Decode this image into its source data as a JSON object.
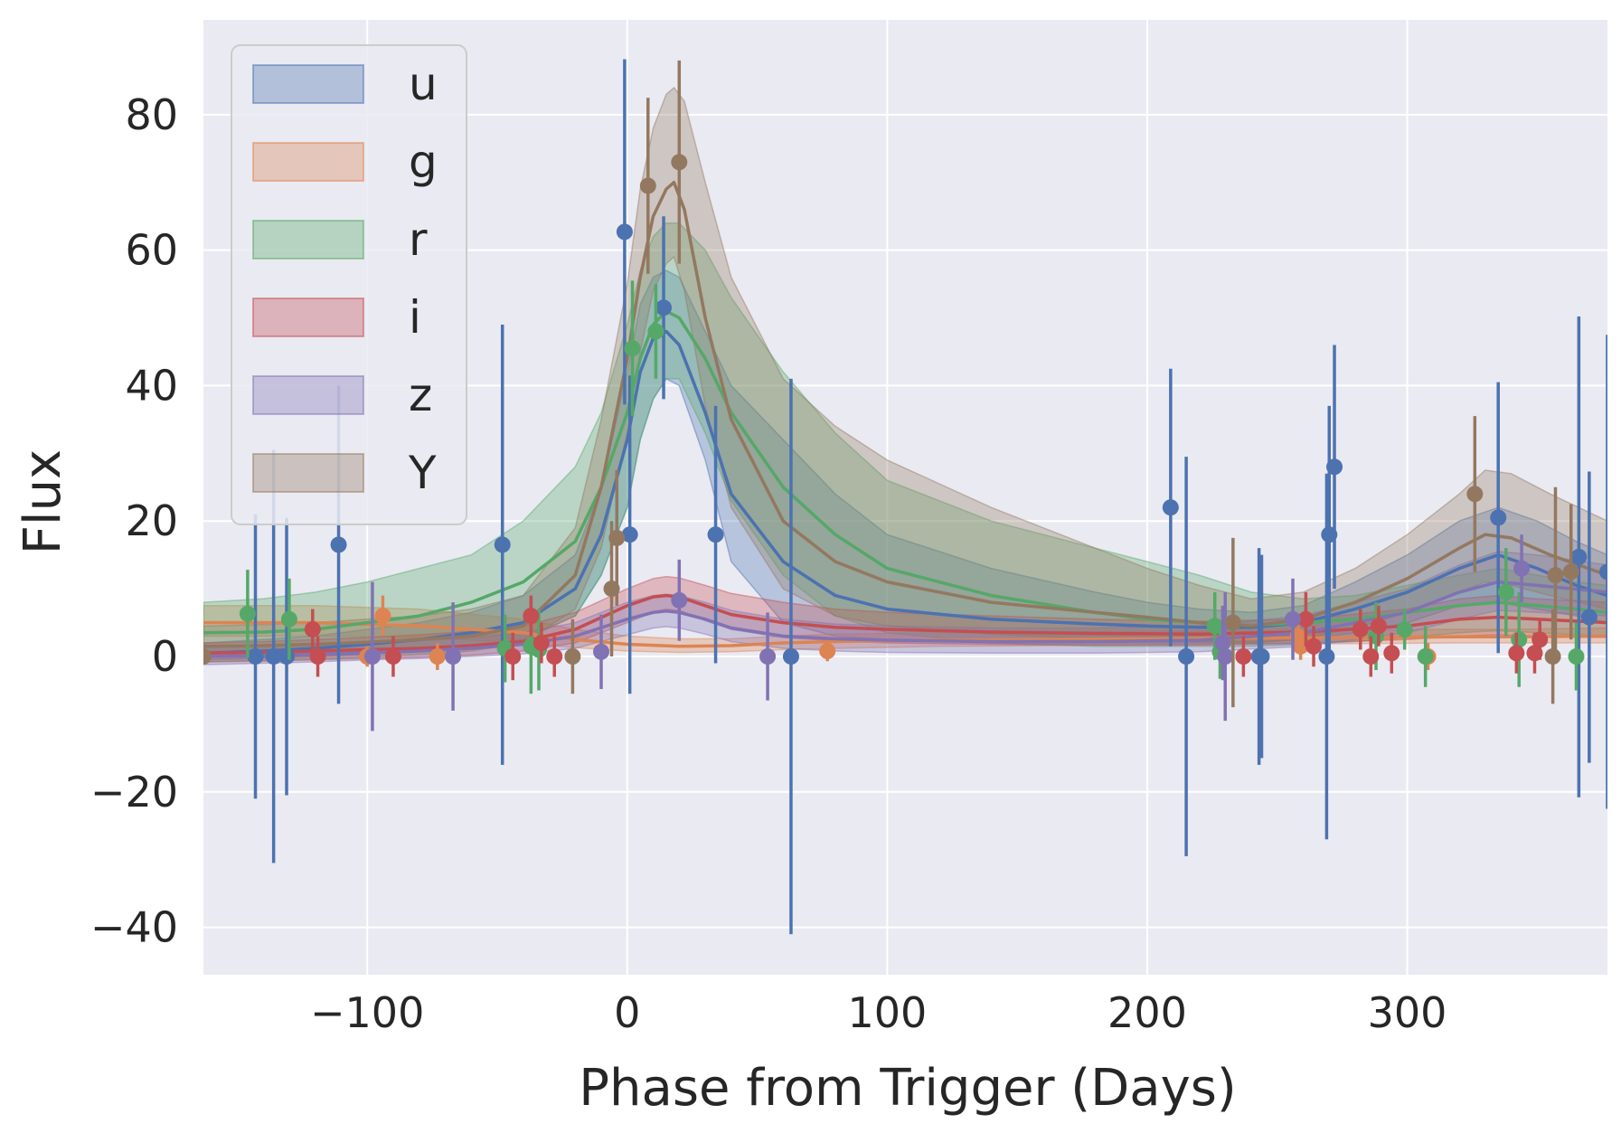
{
  "chart_data": {
    "type": "line",
    "title": "",
    "xlabel": "Phase from Trigger (Days)",
    "ylabel": "Flux",
    "xlim": [
      -163,
      377
    ],
    "ylim": [
      -47,
      94
    ],
    "xticks": [
      -100,
      0,
      100,
      200,
      300
    ],
    "xtick_labels": [
      "−100",
      "0",
      "100",
      "200",
      "300"
    ],
    "yticks": [
      -40,
      -20,
      0,
      20,
      40,
      60,
      80
    ],
    "ytick_labels": [
      "−40",
      "−20",
      "0",
      "20",
      "40",
      "60",
      "80"
    ],
    "grid": true,
    "legend_position": "top-left",
    "style": "seaborn-darkgrid",
    "series": [
      {
        "name": "u",
        "color": "#4c72b0",
        "model_x": [
          -163,
          -140,
          -120,
          -100,
          -80,
          -60,
          -40,
          -20,
          -10,
          0,
          5,
          10,
          15,
          20,
          30,
          40,
          60,
          80,
          100,
          140,
          180,
          200,
          220,
          240,
          260,
          280,
          300,
          320,
          335,
          350,
          365,
          377
        ],
        "model_y": [
          0.5,
          0.8,
          1.2,
          1.8,
          2.5,
          3.5,
          5,
          10,
          18,
          32,
          42,
          47,
          48,
          46,
          36,
          24,
          14,
          9,
          7,
          5.5,
          4.8,
          4.5,
          4.3,
          4.3,
          5,
          7,
          9.5,
          13,
          15,
          13,
          10.5,
          9
        ],
        "band_lo": [
          -0.5,
          -0.3,
          0,
          0.3,
          0.8,
          1.5,
          2.5,
          6,
          12,
          22,
          32,
          38,
          41,
          40,
          29,
          14,
          5,
          3,
          2.5,
          2,
          2,
          2,
          2,
          2,
          2.5,
          3.5,
          5,
          7.5,
          8,
          7,
          6,
          5
        ],
        "band_hi": [
          2,
          2.5,
          3,
          4,
          5,
          6.5,
          9,
          15,
          25,
          42,
          52,
          56,
          57,
          56,
          48,
          40,
          32,
          24,
          18,
          13,
          9.5,
          8,
          7,
          6.5,
          7.5,
          11,
          15,
          20,
          22,
          20,
          17,
          15
        ],
        "points": [
          {
            "x": -143,
            "y": 0,
            "err": 21
          },
          {
            "x": -136,
            "y": 0,
            "err": 30.5
          },
          {
            "x": -131,
            "y": 0,
            "err": 20.5
          },
          {
            "x": -111,
            "y": 16.5,
            "err": 23.5
          },
          {
            "x": -48,
            "y": 16.5,
            "err": 32.5
          },
          {
            "x": -1,
            "y": 62.7,
            "err": 25.5
          },
          {
            "x": 1,
            "y": 18,
            "err": 23.5
          },
          {
            "x": 14,
            "y": 51.5,
            "err": 13.5
          },
          {
            "x": 34,
            "y": 18,
            "err": 19
          },
          {
            "x": 63,
            "y": 0,
            "err": 41
          },
          {
            "x": 209,
            "y": 22,
            "err": 20.5
          },
          {
            "x": 215,
            "y": 0,
            "err": 29.5
          },
          {
            "x": 243,
            "y": 0,
            "err": 16
          },
          {
            "x": 244,
            "y": 0,
            "err": 15
          },
          {
            "x": 269,
            "y": 0,
            "err": 27
          },
          {
            "x": 270,
            "y": 18,
            "err": 19
          },
          {
            "x": 272,
            "y": 28,
            "err": 18
          },
          {
            "x": 335,
            "y": 20.5,
            "err": 20
          },
          {
            "x": 366,
            "y": 14.7,
            "err": 35.5
          },
          {
            "x": 370,
            "y": 5.8,
            "err": 21.5
          },
          {
            "x": 377,
            "y": 12.5,
            "err": 35
          }
        ]
      },
      {
        "name": "g",
        "color": "#dd8452",
        "model_x": [
          -163,
          -120,
          -80,
          -40,
          -20,
          0,
          20,
          40,
          60,
          80,
          120,
          160,
          200,
          240,
          280,
          320,
          340,
          377
        ],
        "model_y": [
          5,
          5,
          4.5,
          3.5,
          2.5,
          1.8,
          1.5,
          1.6,
          2,
          2.2,
          2.4,
          2.5,
          2.6,
          2.7,
          2.8,
          2.9,
          2.9,
          3
        ],
        "band_lo": [
          3,
          3,
          2.8,
          2,
          1.3,
          0.8,
          0.6,
          0.7,
          1,
          1.2,
          1.5,
          1.6,
          1.7,
          1.8,
          1.9,
          2,
          2,
          2
        ],
        "band_hi": [
          7.5,
          7.5,
          7,
          5.5,
          4,
          3,
          2.6,
          2.6,
          3,
          3.3,
          3.5,
          3.6,
          3.7,
          3.8,
          3.9,
          4,
          4,
          4.2
        ],
        "points": [
          {
            "x": -100,
            "y": 0,
            "err": 1.5
          },
          {
            "x": -94,
            "y": 6,
            "err": 3
          },
          {
            "x": -73,
            "y": 0,
            "err": 2
          },
          {
            "x": 77,
            "y": 0.8,
            "err": 1.5
          },
          {
            "x": 258,
            "y": 3,
            "err": 2.5
          },
          {
            "x": 259,
            "y": 1.5,
            "err": 2
          },
          {
            "x": 308,
            "y": 0,
            "err": 2
          }
        ]
      },
      {
        "name": "r",
        "color": "#55a868",
        "model_x": [
          -163,
          -140,
          -120,
          -100,
          -80,
          -60,
          -40,
          -20,
          -10,
          0,
          5,
          10,
          15,
          20,
          30,
          40,
          60,
          80,
          100,
          140,
          180,
          200,
          220,
          240,
          260,
          280,
          300,
          320,
          335,
          350,
          365,
          377
        ],
        "model_y": [
          3.5,
          3.6,
          4,
          5,
          6,
          8,
          11,
          17,
          25,
          36,
          44,
          49,
          51,
          50,
          44,
          36,
          25,
          18,
          13,
          9,
          6.5,
          5.5,
          5,
          4.6,
          5,
          5.5,
          6.5,
          7.5,
          8,
          7.5,
          7,
          6.5
        ],
        "band_lo": [
          0,
          0,
          0.2,
          0.5,
          1,
          1.5,
          2.5,
          6,
          12,
          22,
          32,
          38,
          41,
          41,
          33,
          23,
          12,
          6,
          3.5,
          2,
          1.5,
          1.5,
          1.5,
          1.5,
          1.8,
          2.2,
          2.8,
          3.5,
          3.8,
          3.5,
          3.2,
          3
        ],
        "band_hi": [
          8,
          8.5,
          9.5,
          11,
          13,
          15,
          20,
          28,
          36,
          49,
          57,
          62,
          64,
          64,
          60,
          53,
          42,
          33,
          26,
          20,
          16,
          14,
          12,
          9.5,
          8.5,
          9,
          10.5,
          12,
          13,
          12,
          11,
          10.5
        ],
        "points": [
          {
            "x": -146,
            "y": 6.3,
            "err": 6.5
          },
          {
            "x": -130,
            "y": 5.5,
            "err": 6
          },
          {
            "x": -47,
            "y": 1.2,
            "err": 5
          },
          {
            "x": -37,
            "y": 1.5,
            "err": 7
          },
          {
            "x": -34,
            "y": 1,
            "err": 6
          },
          {
            "x": 2,
            "y": 45.5,
            "err": 10
          },
          {
            "x": 11,
            "y": 48,
            "err": 7
          },
          {
            "x": 226,
            "y": 4.5,
            "err": 5
          },
          {
            "x": 228,
            "y": 0.7,
            "err": 4
          },
          {
            "x": 288,
            "y": 3,
            "err": 5
          },
          {
            "x": 299,
            "y": 4,
            "err": 3
          },
          {
            "x": 307,
            "y": 0,
            "err": 4.5
          },
          {
            "x": 338,
            "y": 9.5,
            "err": 6.5
          },
          {
            "x": 343,
            "y": 2.5,
            "err": 7
          },
          {
            "x": 365,
            "y": 0,
            "err": 5
          }
        ]
      },
      {
        "name": "i",
        "color": "#c44e52",
        "model_x": [
          -163,
          -140,
          -120,
          -100,
          -80,
          -60,
          -40,
          -20,
          0,
          10,
          15,
          20,
          30,
          40,
          60,
          80,
          100,
          140,
          180,
          220,
          260,
          300,
          320,
          335,
          350,
          377
        ],
        "model_y": [
          0.5,
          0.6,
          0.8,
          1,
          1.2,
          1.6,
          2.2,
          4,
          7.5,
          8.8,
          9,
          8.8,
          7.5,
          6.2,
          5,
          4.3,
          4,
          3.6,
          3.4,
          3.3,
          3.6,
          4.5,
          5.5,
          5.8,
          5.5,
          5
        ],
        "band_lo": [
          -0.8,
          -0.7,
          -0.5,
          -0.3,
          -0.1,
          0.2,
          0.8,
          2,
          5,
          6.5,
          7,
          6.8,
          5.3,
          4,
          2.8,
          2.3,
          2,
          1.8,
          1.7,
          1.7,
          2,
          2.5,
          3,
          3.2,
          3,
          2.8
        ],
        "band_hi": [
          2,
          2.2,
          2.5,
          2.8,
          3.2,
          3.7,
          4.5,
          6.5,
          10,
          11.5,
          11.8,
          11.6,
          10.5,
          9.3,
          8,
          7,
          6.5,
          6,
          5.5,
          5.2,
          5.5,
          7,
          8.5,
          9,
          8.5,
          8
        ],
        "points": [
          {
            "x": -121,
            "y": 4,
            "err": 3
          },
          {
            "x": -119,
            "y": 0,
            "err": 3
          },
          {
            "x": -90,
            "y": 0,
            "err": 3
          },
          {
            "x": -44,
            "y": 0,
            "err": 3.5
          },
          {
            "x": -37,
            "y": 6,
            "err": 3
          },
          {
            "x": -33,
            "y": 2,
            "err": 3
          },
          {
            "x": -28,
            "y": 0,
            "err": 3
          },
          {
            "x": 237,
            "y": 0,
            "err": 3
          },
          {
            "x": 261,
            "y": 5.5,
            "err": 4
          },
          {
            "x": 264,
            "y": 1.5,
            "err": 3
          },
          {
            "x": 282,
            "y": 4,
            "err": 3
          },
          {
            "x": 286,
            "y": 0,
            "err": 3
          },
          {
            "x": 289,
            "y": 4.5,
            "err": 3
          },
          {
            "x": 294,
            "y": 0.5,
            "err": 3
          },
          {
            "x": 342,
            "y": 0.5,
            "err": 3
          },
          {
            "x": 349,
            "y": 0.5,
            "err": 3
          },
          {
            "x": 351,
            "y": 2.5,
            "err": 3
          }
        ]
      },
      {
        "name": "z",
        "color": "#8172b3",
        "model_x": [
          -163,
          -140,
          -120,
          -100,
          -80,
          -60,
          -40,
          -20,
          0,
          10,
          15,
          20,
          30,
          40,
          60,
          80,
          100,
          140,
          180,
          220,
          260,
          300,
          320,
          335,
          350,
          377
        ],
        "model_y": [
          0,
          0.1,
          0.3,
          0.5,
          0.8,
          1.2,
          1.8,
          3,
          5.5,
          6.5,
          6.7,
          6.5,
          5.5,
          4.2,
          3,
          2.6,
          2.4,
          2.2,
          2.2,
          2.4,
          3.5,
          6.5,
          9.5,
          11,
          10.5,
          9.5
        ],
        "band_lo": [
          -1.2,
          -1,
          -0.8,
          -0.5,
          -0.3,
          0,
          0.4,
          1.2,
          3.2,
          4.2,
          4.4,
          4.2,
          3.3,
          2.2,
          1.2,
          0.8,
          0.6,
          0.5,
          0.5,
          0.7,
          1.5,
          3.5,
          5.5,
          6.8,
          6.5,
          6
        ],
        "band_hi": [
          1.5,
          1.6,
          1.8,
          2,
          2.3,
          2.8,
          3.5,
          5,
          8,
          9,
          9.2,
          9,
          8,
          6.8,
          5.5,
          4.8,
          4.5,
          4.2,
          4.2,
          4.5,
          6,
          10,
          13.5,
          15.5,
          15,
          13.5
        ],
        "points": [
          {
            "x": -98,
            "y": 0,
            "err": 11
          },
          {
            "x": -67,
            "y": 0,
            "err": 8
          },
          {
            "x": -10,
            "y": 0.7,
            "err": 5.5
          },
          {
            "x": 20,
            "y": 8.3,
            "err": 6
          },
          {
            "x": 54,
            "y": 0,
            "err": 6.5
          },
          {
            "x": 229,
            "y": 2,
            "err": 5.5
          },
          {
            "x": 230,
            "y": 0,
            "err": 9.5
          },
          {
            "x": 256,
            "y": 5.5,
            "err": 6
          },
          {
            "x": 344,
            "y": 13,
            "err": 5
          }
        ]
      },
      {
        "name": "Y",
        "color": "#937860",
        "model_x": [
          -163,
          -140,
          -120,
          -100,
          -80,
          -60,
          -40,
          -20,
          -10,
          0,
          5,
          10,
          15,
          18,
          22,
          30,
          40,
          60,
          80,
          100,
          140,
          180,
          200,
          220,
          240,
          260,
          280,
          300,
          320,
          330,
          340,
          355,
          377
        ],
        "model_y": [
          1.5,
          1.6,
          1.8,
          2.1,
          2.5,
          3,
          4.5,
          12,
          25,
          44,
          56,
          65,
          69,
          70,
          66,
          50,
          35,
          20,
          14,
          11,
          8,
          6.5,
          5.8,
          5,
          4.5,
          5.5,
          8,
          11.5,
          16,
          18,
          17.5,
          15,
          12
        ],
        "band_lo": [
          -0.8,
          -0.6,
          -0.4,
          -0.1,
          0.3,
          0.8,
          2,
          7,
          16,
          33,
          45,
          54,
          58,
          59,
          54,
          37,
          22,
          10,
          6,
          4.5,
          3.3,
          2.6,
          2.4,
          2.2,
          2.1,
          2.6,
          4.2,
          6.5,
          9.5,
          11,
          10.5,
          9,
          7
        ],
        "band_hi": [
          4.5,
          4.7,
          5,
          5.5,
          6,
          7,
          9,
          19,
          35,
          55,
          69,
          78,
          83,
          84,
          82,
          70,
          56,
          41,
          34,
          29,
          22,
          16,
          13,
          10.5,
          8.5,
          9.5,
          13,
          18,
          24,
          27.5,
          27,
          24,
          20
        ],
        "points": [
          {
            "x": -163,
            "y": 0,
            "err": 1
          },
          {
            "x": -21,
            "y": 0,
            "err": 5.5
          },
          {
            "x": -6,
            "y": 10,
            "err": 10
          },
          {
            "x": -4,
            "y": 17.5,
            "err": 10
          },
          {
            "x": 8,
            "y": 69.5,
            "err": 13
          },
          {
            "x": 20,
            "y": 73,
            "err": 15
          },
          {
            "x": 233,
            "y": 5,
            "err": 12.5
          },
          {
            "x": 326,
            "y": 24,
            "err": 11.5
          },
          {
            "x": 356,
            "y": 0,
            "err": 7
          },
          {
            "x": 357,
            "y": 12,
            "err": 13
          },
          {
            "x": 363,
            "y": 12.5,
            "err": 10
          }
        ]
      }
    ]
  }
}
